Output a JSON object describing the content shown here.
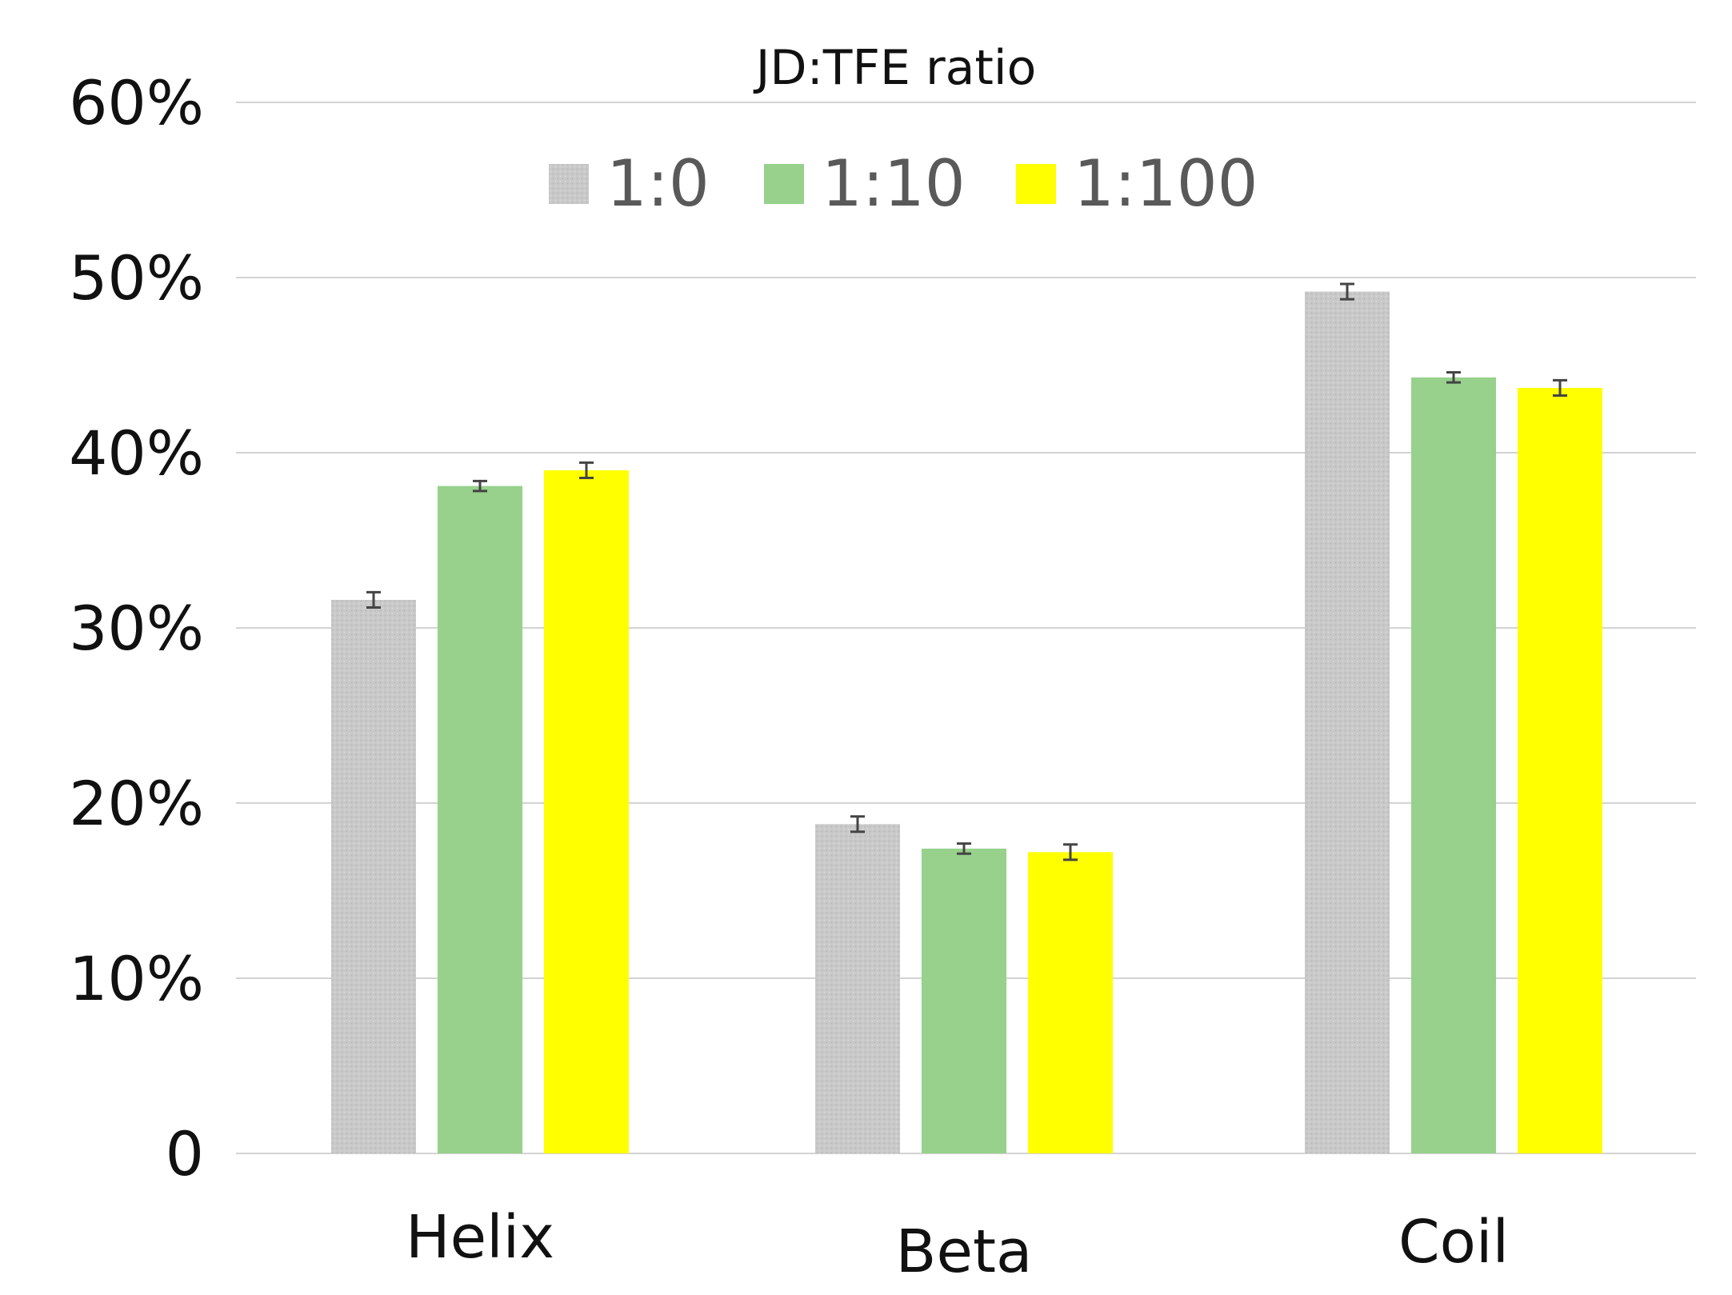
{
  "chart_data": {
    "type": "bar",
    "title": "",
    "xlabel": "",
    "ylabel": "",
    "legend_title": "JD:TFE ratio",
    "legend_position": "top",
    "categories": [
      "Helix",
      "Beta",
      "Coil"
    ],
    "series": [
      {
        "name": "1:0",
        "color": "#c8c8c8",
        "values": [
          31.6,
          18.8,
          49.2
        ],
        "errors": [
          0.3,
          0.3,
          0.3
        ]
      },
      {
        "name": "1:10",
        "color": "#97d18c",
        "values": [
          38.1,
          17.4,
          44.3
        ],
        "errors": [
          0.15,
          0.15,
          0.15
        ]
      },
      {
        "name": "1:100",
        "color": "#ffff00",
        "values": [
          39.0,
          17.2,
          43.7
        ],
        "errors": [
          0.3,
          0.3,
          0.3
        ]
      }
    ],
    "ylim": [
      0,
      60
    ],
    "yticks": [
      0,
      10,
      20,
      30,
      40,
      50,
      60
    ],
    "ytick_labels": [
      "0",
      "10%",
      "20%",
      "30%",
      "40%",
      "50%",
      "60%"
    ],
    "grid": true
  }
}
